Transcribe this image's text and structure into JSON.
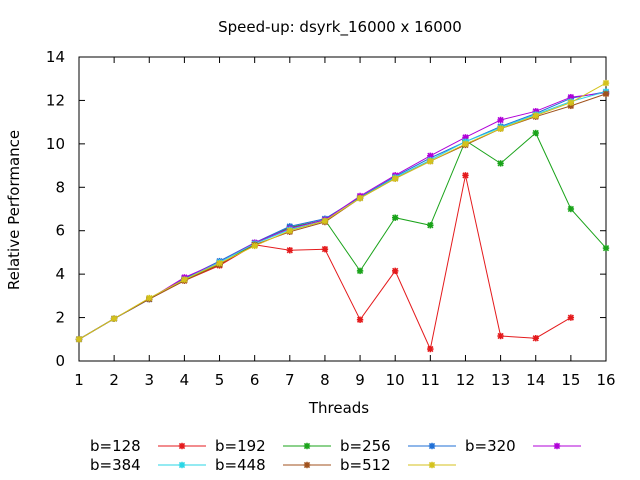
{
  "chart_data": {
    "type": "line",
    "title": "Speed-up: dsyrk_16000 x 16000",
    "xlabel": "Threads",
    "ylabel": "Relative Performance",
    "xlim": [
      1,
      16
    ],
    "ylim": [
      0,
      14
    ],
    "x_ticks": [
      "1",
      "2",
      "3",
      "4",
      "5",
      "6",
      "7",
      "8",
      "9",
      "10",
      "11",
      "12",
      "13",
      "14",
      "15",
      "16"
    ],
    "y_ticks": [
      "0",
      "2",
      "4",
      "6",
      "8",
      "10",
      "12",
      "14"
    ],
    "grid": false,
    "legend_position": "bottom",
    "series": [
      {
        "name": "b=128",
        "color": "#e41a1c",
        "x": [
          1,
          2,
          3,
          4,
          5,
          6,
          7,
          8,
          9,
          10,
          11,
          12,
          13,
          14,
          15
        ],
        "values": [
          1.0,
          1.95,
          2.85,
          3.7,
          4.4,
          5.35,
          5.1,
          5.15,
          1.9,
          4.15,
          0.55,
          8.55,
          1.15,
          1.05,
          2.0
        ]
      },
      {
        "name": "b=192",
        "color": "#1aa31a",
        "x": [
          1,
          2,
          3,
          4,
          5,
          6,
          7,
          8,
          9,
          10,
          11,
          12,
          13,
          14,
          15,
          16
        ],
        "values": [
          1.0,
          1.95,
          2.85,
          3.75,
          4.45,
          5.4,
          6.15,
          6.5,
          4.15,
          6.6,
          6.25,
          10.15,
          9.1,
          10.5,
          7.0,
          5.2
        ]
      },
      {
        "name": "b=256",
        "color": "#1f6fd6",
        "x": [
          1,
          2,
          3,
          4,
          5,
          6,
          7,
          8,
          9,
          10,
          11,
          12,
          13,
          14,
          15,
          16
        ],
        "values": [
          1.0,
          1.95,
          2.85,
          3.8,
          4.6,
          5.45,
          6.2,
          6.55,
          7.55,
          8.5,
          9.35,
          10.1,
          10.8,
          11.4,
          12.1,
          12.4
        ]
      },
      {
        "name": "b=320",
        "color": "#b000d8",
        "x": [
          1,
          2,
          3,
          4,
          5,
          6,
          7,
          8,
          9,
          10,
          11,
          12,
          13,
          14,
          15,
          16
        ],
        "values": [
          1.0,
          1.95,
          2.85,
          3.85,
          4.55,
          5.45,
          6.1,
          6.5,
          7.6,
          8.55,
          9.45,
          10.3,
          11.1,
          11.5,
          12.15,
          12.35
        ]
      },
      {
        "name": "b=384",
        "color": "#29d6e6",
        "x": [
          1,
          2,
          3,
          4,
          5,
          6,
          7,
          8,
          9,
          10,
          11,
          12,
          13,
          14,
          15,
          16
        ],
        "values": [
          1.0,
          1.95,
          2.85,
          3.75,
          4.55,
          5.4,
          6.05,
          6.45,
          7.5,
          8.45,
          9.25,
          10.1,
          10.75,
          11.35,
          11.95,
          12.4
        ]
      },
      {
        "name": "b=448",
        "color": "#a0521c",
        "x": [
          1,
          2,
          3,
          4,
          5,
          6,
          7,
          8,
          9,
          10,
          11,
          12,
          13,
          14,
          15,
          16
        ],
        "values": [
          1.0,
          1.95,
          2.85,
          3.7,
          4.45,
          5.35,
          5.95,
          6.4,
          7.5,
          8.4,
          9.2,
          9.95,
          10.7,
          11.25,
          11.75,
          12.3
        ]
      },
      {
        "name": "b=512",
        "color": "#d4c21c",
        "x": [
          1,
          2,
          3,
          4,
          5,
          6,
          7,
          8,
          9,
          10,
          11,
          12,
          13,
          14,
          15,
          16
        ],
        "values": [
          1.0,
          1.95,
          2.9,
          3.75,
          4.5,
          5.3,
          6.0,
          6.45,
          7.5,
          8.4,
          9.2,
          10.0,
          10.7,
          11.3,
          11.9,
          12.8
        ]
      }
    ]
  }
}
